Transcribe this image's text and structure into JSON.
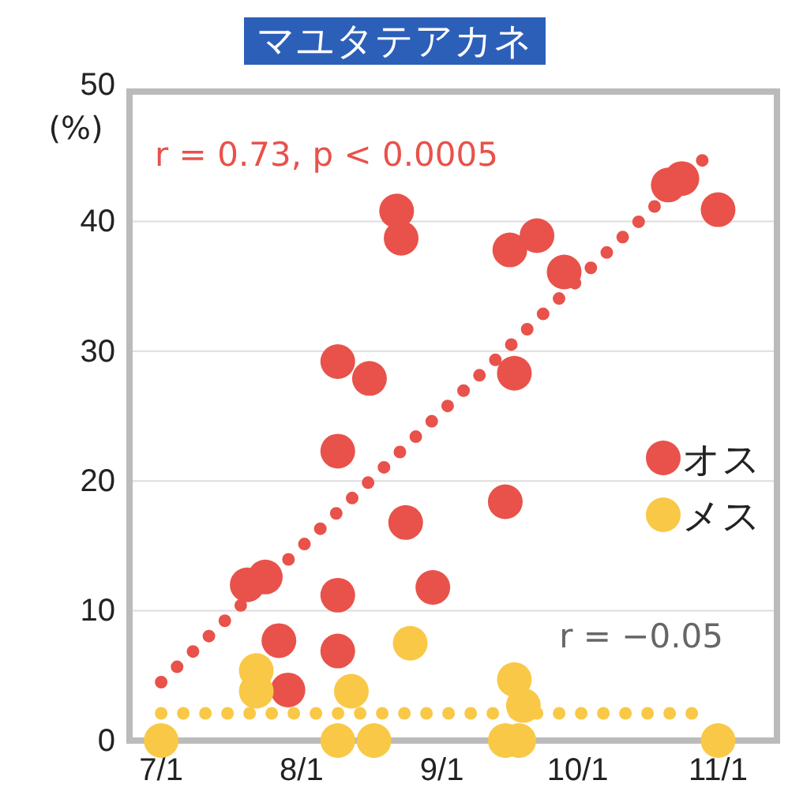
{
  "chart_data": {
    "type": "scatter",
    "title": "マユタテアカネ",
    "ylabel": "(%)",
    "xlim": [
      "--06-24",
      "--11-14"
    ],
    "xticks": [
      {
        "value": "--07-01",
        "label": "7/1"
      },
      {
        "value": "--08-01",
        "label": "8/1"
      },
      {
        "value": "--09-01",
        "label": "9/1"
      },
      {
        "value": "--10-01",
        "label": "10/1"
      },
      {
        "value": "--11-01",
        "label": "11/1"
      }
    ],
    "ylim": [
      0,
      50
    ],
    "yticks": [
      0,
      10,
      20,
      30,
      40,
      50
    ],
    "grid": "y",
    "legend": "right",
    "marker": "circle",
    "annotations": [
      "r = 0.73, p < 0.0005",
      "r = −0.05"
    ],
    "series": [
      {
        "name": "オス",
        "color": "#e8524a",
        "x": [
          "--07-24",
          "--07-20",
          "--07-27",
          "--07-29",
          "--08-09",
          "--08-09",
          "--08-09",
          "--08-09",
          "--08-16",
          "--08-22",
          "--08-23",
          "--08-24",
          "--08-30",
          "--09-15",
          "--09-17",
          "--09-16",
          "--09-22",
          "--09-28",
          "--10-21",
          "--10-24",
          "--11-01"
        ],
        "values": [
          12.6,
          12,
          7.7,
          3.9,
          29.2,
          22.3,
          11.2,
          6.9,
          27.9,
          40.8,
          38.7,
          16.8,
          11.8,
          18.4,
          28.3,
          37.8,
          38.9,
          36.1,
          42.8,
          43.3,
          40.9
        ]
      },
      {
        "name": "メス",
        "color": "#f9c846",
        "x": [
          "--07-01",
          "--07-22",
          "--07-22",
          "--08-09",
          "--08-12",
          "--08-17",
          "--08-25",
          "--09-17",
          "--09-19",
          "--09-15",
          "--09-18",
          "--11-01"
        ],
        "values": [
          0,
          5.4,
          3.8,
          0,
          3.8,
          0,
          7.5,
          4.7,
          2.7,
          0,
          0,
          0
        ]
      },
      {
        "type": "line",
        "marker": "none",
        "line_style": "dotted",
        "color": "#e8524a",
        "x": [
          "--07-01",
          "--10-30"
        ],
        "values": [
          4.5,
          45.2
        ]
      },
      {
        "type": "line",
        "marker": "none",
        "line_style": "dotted",
        "color": "#f9c846",
        "x": [
          "--07-01",
          "--10-30"
        ],
        "values": [
          2.1,
          2.1
        ]
      }
    ]
  }
}
